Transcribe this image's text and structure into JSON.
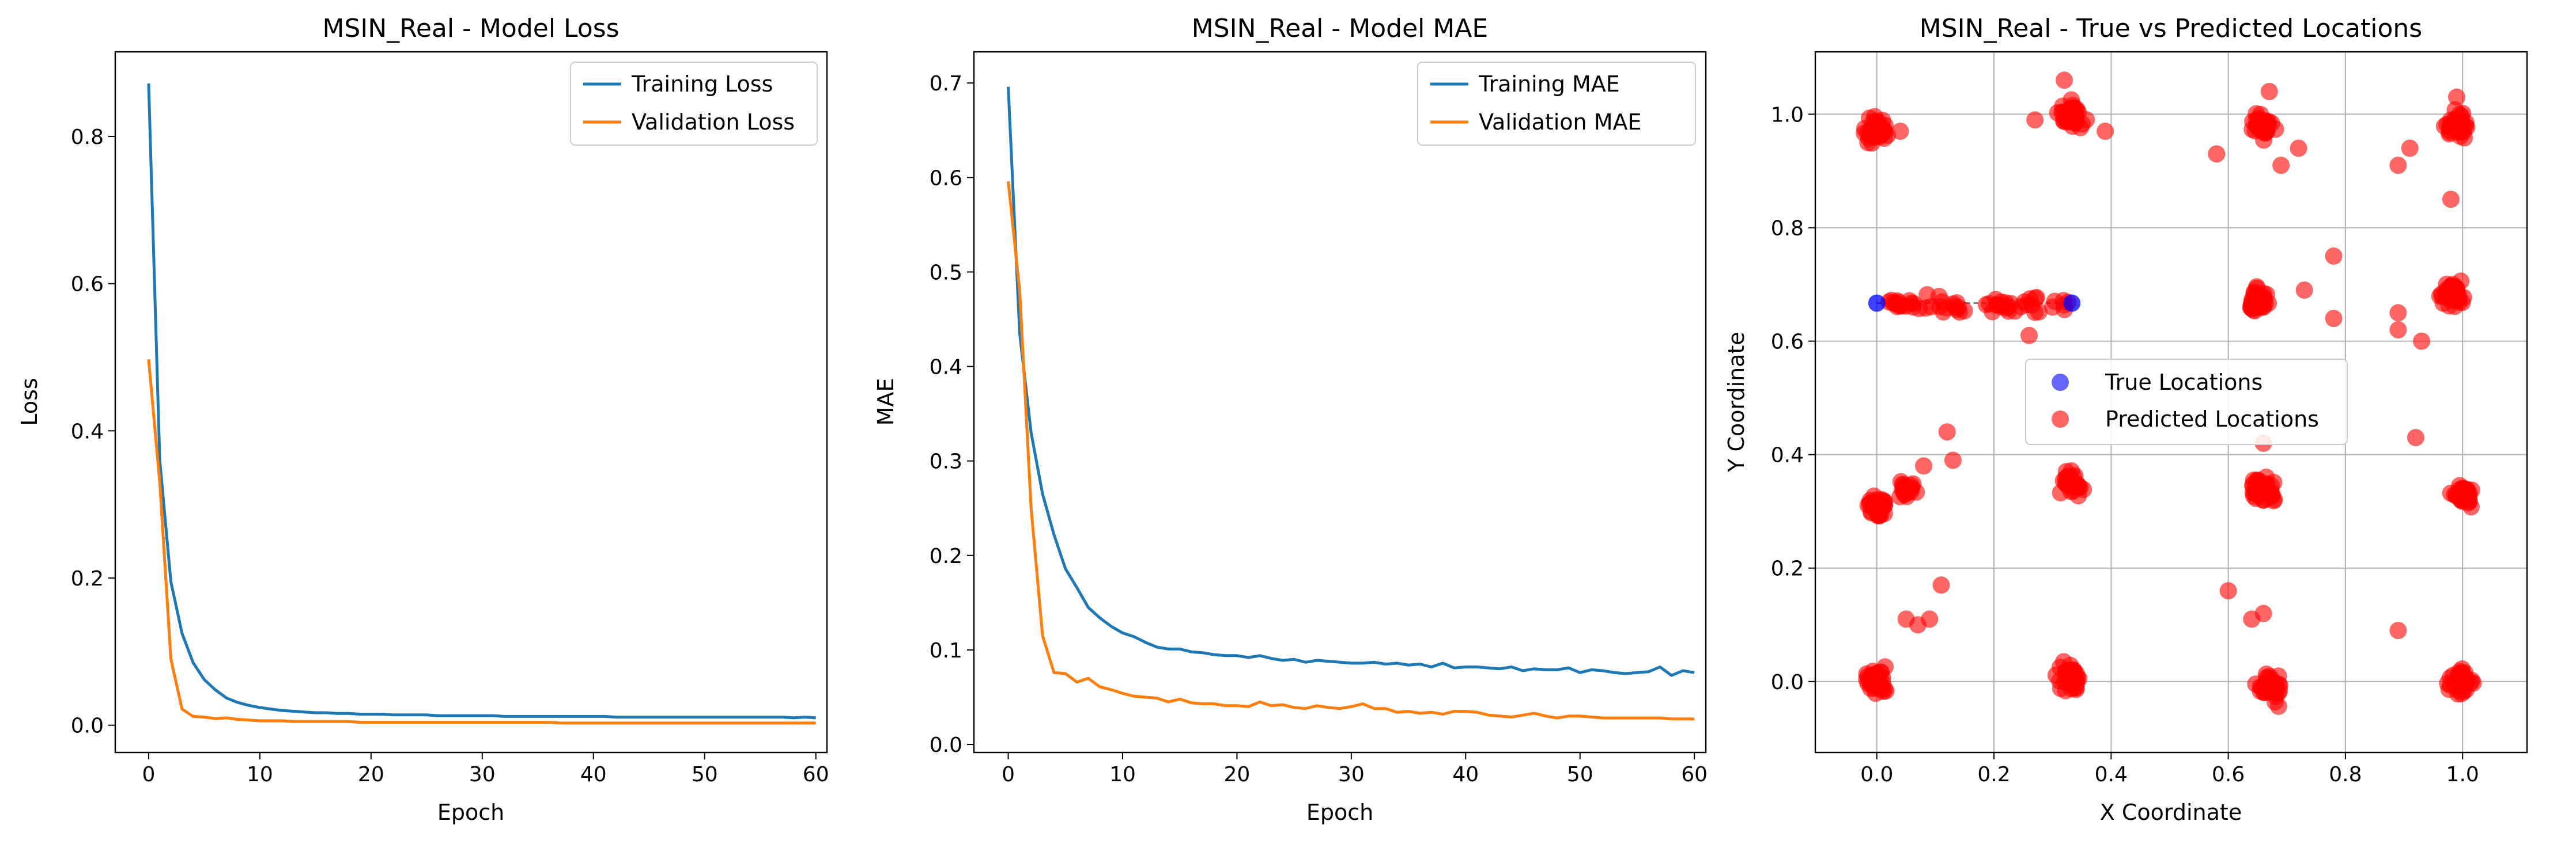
{
  "chart_data": [
    {
      "id": "loss",
      "type": "line",
      "title": "MSIN_Real - Model Loss",
      "xlabel": "Epoch",
      "ylabel": "Loss",
      "xlim": [
        -3,
        61
      ],
      "ylim": [
        -0.037,
        0.915
      ],
      "xticks": [
        0,
        10,
        20,
        30,
        40,
        50,
        60
      ],
      "yticks": [
        0.0,
        0.2,
        0.4,
        0.6,
        0.8
      ],
      "ytick_labels": [
        "0.0",
        "0.2",
        "0.4",
        "0.6",
        "0.8"
      ],
      "grid": false,
      "legend_position": "upper right",
      "series": [
        {
          "name": "Training Loss",
          "color": "#1f77b4",
          "values": [
            0.872,
            0.36,
            0.195,
            0.125,
            0.085,
            0.062,
            0.048,
            0.037,
            0.031,
            0.027,
            0.024,
            0.022,
            0.02,
            0.019,
            0.018,
            0.017,
            0.017,
            0.016,
            0.016,
            0.015,
            0.015,
            0.015,
            0.014,
            0.014,
            0.014,
            0.014,
            0.013,
            0.013,
            0.013,
            0.013,
            0.013,
            0.013,
            0.012,
            0.012,
            0.012,
            0.012,
            0.012,
            0.012,
            0.012,
            0.012,
            0.012,
            0.012,
            0.011,
            0.011,
            0.011,
            0.011,
            0.011,
            0.011,
            0.011,
            0.011,
            0.011,
            0.011,
            0.011,
            0.011,
            0.011,
            0.011,
            0.011,
            0.011,
            0.01,
            0.011,
            0.01
          ]
        },
        {
          "name": "Validation Loss",
          "color": "#ff7f0e",
          "values": [
            0.497,
            0.33,
            0.09,
            0.022,
            0.012,
            0.011,
            0.009,
            0.01,
            0.008,
            0.007,
            0.006,
            0.006,
            0.006,
            0.005,
            0.005,
            0.005,
            0.005,
            0.005,
            0.005,
            0.004,
            0.004,
            0.004,
            0.004,
            0.004,
            0.004,
            0.004,
            0.004,
            0.004,
            0.004,
            0.004,
            0.004,
            0.004,
            0.004,
            0.004,
            0.004,
            0.004,
            0.004,
            0.003,
            0.003,
            0.003,
            0.003,
            0.003,
            0.003,
            0.003,
            0.003,
            0.003,
            0.003,
            0.003,
            0.003,
            0.003,
            0.003,
            0.003,
            0.003,
            0.003,
            0.003,
            0.003,
            0.003,
            0.003,
            0.003,
            0.003,
            0.003
          ]
        }
      ]
    },
    {
      "id": "mae",
      "type": "line",
      "title": "MSIN_Real - Model MAE",
      "xlabel": "Epoch",
      "ylabel": "MAE",
      "xlim": [
        -3,
        61
      ],
      "ylim": [
        -0.0085,
        0.733
      ],
      "xticks": [
        0,
        10,
        20,
        30,
        40,
        50,
        60
      ],
      "yticks": [
        0.0,
        0.1,
        0.2,
        0.3,
        0.4,
        0.5,
        0.6,
        0.7
      ],
      "ytick_labels": [
        "0.0",
        "0.1",
        "0.2",
        "0.3",
        "0.4",
        "0.5",
        "0.6",
        "0.7"
      ],
      "grid": false,
      "legend_position": "upper right",
      "series": [
        {
          "name": "Training MAE",
          "color": "#1f77b4",
          "values": [
            0.696,
            0.435,
            0.33,
            0.265,
            0.222,
            0.186,
            0.166,
            0.145,
            0.134,
            0.125,
            0.118,
            0.114,
            0.108,
            0.103,
            0.101,
            0.101,
            0.098,
            0.097,
            0.095,
            0.094,
            0.094,
            0.092,
            0.094,
            0.091,
            0.089,
            0.09,
            0.087,
            0.089,
            0.088,
            0.087,
            0.086,
            0.086,
            0.087,
            0.085,
            0.086,
            0.084,
            0.085,
            0.082,
            0.086,
            0.081,
            0.082,
            0.082,
            0.081,
            0.08,
            0.082,
            0.078,
            0.08,
            0.079,
            0.079,
            0.081,
            0.076,
            0.079,
            0.078,
            0.076,
            0.075,
            0.076,
            0.077,
            0.082,
            0.073,
            0.078,
            0.076
          ]
        },
        {
          "name": "Validation MAE",
          "color": "#ff7f0e",
          "values": [
            0.596,
            0.48,
            0.25,
            0.115,
            0.076,
            0.075,
            0.066,
            0.07,
            0.061,
            0.058,
            0.054,
            0.051,
            0.05,
            0.049,
            0.045,
            0.048,
            0.044,
            0.043,
            0.043,
            0.041,
            0.041,
            0.04,
            0.045,
            0.041,
            0.042,
            0.039,
            0.038,
            0.041,
            0.039,
            0.038,
            0.04,
            0.043,
            0.038,
            0.038,
            0.034,
            0.035,
            0.033,
            0.034,
            0.032,
            0.035,
            0.035,
            0.034,
            0.031,
            0.03,
            0.029,
            0.031,
            0.033,
            0.03,
            0.028,
            0.03,
            0.03,
            0.029,
            0.028,
            0.028,
            0.028,
            0.028,
            0.028,
            0.028,
            0.027,
            0.027,
            0.027
          ]
        }
      ]
    },
    {
      "id": "locations",
      "type": "scatter",
      "title": "MSIN_Real - True vs Predicted Locations",
      "xlabel": "X Coordinate",
      "ylabel": "Y Coordinate",
      "xlim": [
        -0.105,
        1.11
      ],
      "ylim": [
        -0.125,
        1.11
      ],
      "xticks": [
        0.0,
        0.2,
        0.4,
        0.6,
        0.8,
        1.0
      ],
      "yticks": [
        0.0,
        0.2,
        0.4,
        0.6,
        0.8,
        1.0
      ],
      "tick_labels": [
        "0.0",
        "0.2",
        "0.4",
        "0.6",
        "0.8",
        "1.0"
      ],
      "grid": true,
      "legend_position": "center",
      "series": [
        {
          "name": "True Locations",
          "color": "#0000ff",
          "points": [
            [
              0.0,
              0.667
            ],
            [
              0.333,
              0.667
            ]
          ]
        },
        {
          "name": "Predicted Locations",
          "color": "#ff0000",
          "clusters": [
            {
              "center": [
                0.0,
                0.97
              ],
              "n": 38,
              "spread": 0.018
            },
            {
              "center": [
                0.33,
                1.0
              ],
              "n": 40,
              "spread": 0.017
            },
            {
              "center": [
                0.66,
                0.98
              ],
              "n": 36,
              "spread": 0.017
            },
            {
              "center": [
                0.99,
                0.98
              ],
              "n": 40,
              "spread": 0.017
            },
            {
              "center": [
                0.65,
                0.67
              ],
              "n": 32,
              "spread": 0.017
            },
            {
              "center": [
                0.98,
                0.68
              ],
              "n": 42,
              "spread": 0.018
            },
            {
              "center": [
                0.0,
                0.31
              ],
              "n": 32,
              "spread": 0.016
            },
            {
              "center": [
                0.05,
                0.34
              ],
              "n": 22,
              "spread": 0.014
            },
            {
              "center": [
                0.33,
                0.35
              ],
              "n": 30,
              "spread": 0.015
            },
            {
              "center": [
                0.66,
                0.34
              ],
              "n": 48,
              "spread": 0.016
            },
            {
              "center": [
                1.0,
                0.33
              ],
              "n": 34,
              "spread": 0.016
            },
            {
              "center": [
                0.0,
                0.0
              ],
              "n": 42,
              "spread": 0.017
            },
            {
              "center": [
                0.33,
                0.01
              ],
              "n": 40,
              "spread": 0.018
            },
            {
              "center": [
                0.67,
                -0.01
              ],
              "n": 38,
              "spread": 0.018
            },
            {
              "center": [
                1.0,
                0.0
              ],
              "n": 40,
              "spread": 0.016
            }
          ],
          "band": {
            "x_from": 0.02,
            "x_to": 0.33,
            "y": 0.665,
            "n": 60
          },
          "outliers": [
            [
              0.12,
              0.44
            ],
            [
              0.13,
              0.39
            ],
            [
              0.08,
              0.38
            ],
            [
              0.11,
              0.17
            ],
            [
              0.05,
              0.11
            ],
            [
              0.07,
              0.1
            ],
            [
              0.09,
              0.11
            ],
            [
              0.58,
              0.93
            ],
            [
              0.6,
              0.16
            ],
            [
              0.64,
              0.11
            ],
            [
              0.66,
              0.12
            ],
            [
              0.78,
              0.75
            ],
            [
              0.78,
              0.64
            ],
            [
              0.73,
              0.69
            ],
            [
              0.69,
              0.91
            ],
            [
              0.72,
              0.94
            ],
            [
              0.39,
              0.97
            ],
            [
              0.27,
              0.99
            ],
            [
              0.04,
              0.97
            ],
            [
              0.89,
              0.65
            ],
            [
              0.89,
              0.62
            ],
            [
              0.89,
              0.91
            ],
            [
              0.93,
              0.6
            ],
            [
              0.91,
              0.94
            ],
            [
              0.92,
              0.43
            ],
            [
              0.89,
              0.09
            ],
            [
              0.98,
              0.85
            ],
            [
              0.66,
              0.42
            ],
            [
              0.26,
              0.61
            ],
            [
              0.99,
              1.03
            ],
            [
              0.67,
              1.04
            ],
            [
              0.32,
              1.06
            ]
          ]
        }
      ]
    }
  ]
}
